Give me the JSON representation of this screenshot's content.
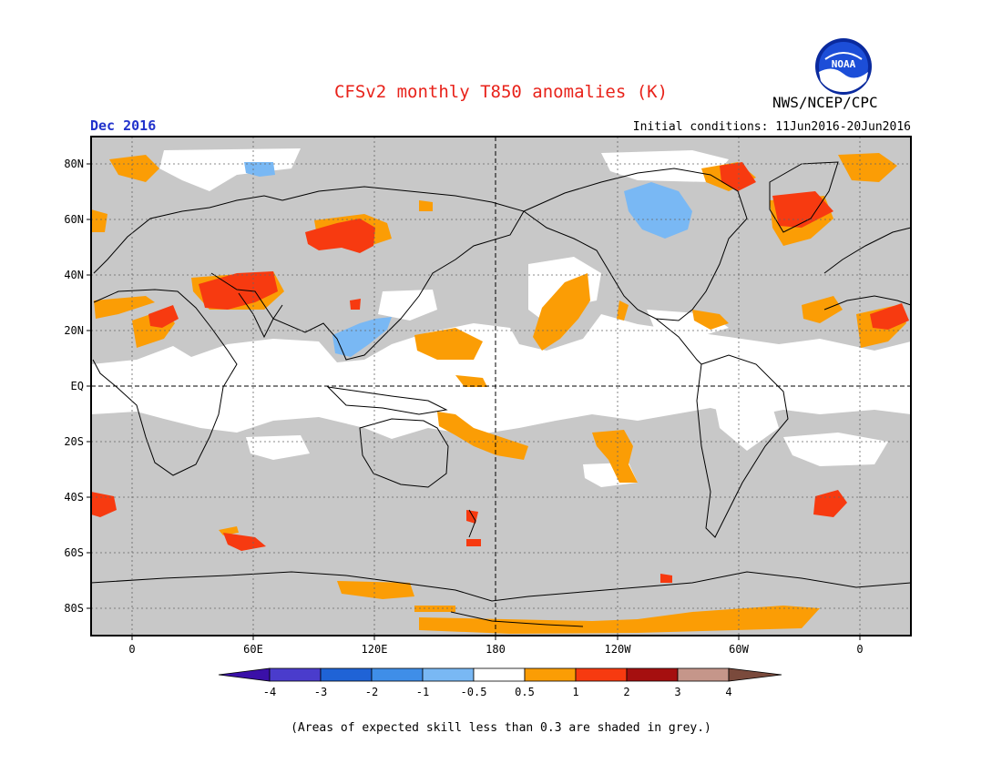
{
  "title": "CFSv2 monthly T850 anomalies (K)",
  "agency": "NWS/NCEP/CPC",
  "logo_text": "NOAA",
  "valid_month": "Dec 2016",
  "initial_conditions": "Initial conditions: 11Jun2016-20Jun2016",
  "footnote": "(Areas of expected skill less than 0.3 are shaded in grey.)",
  "lat_labels": [
    "80N",
    "60N",
    "40N",
    "20N",
    "EQ",
    "20S",
    "40S",
    "60S",
    "80S"
  ],
  "lon_labels": [
    "0",
    "60E",
    "120E",
    "180",
    "120W",
    "60W",
    "0"
  ],
  "colorbar": {
    "tick_labels": [
      "-4",
      "-3",
      "-2",
      "-1",
      "-0.5",
      "0.5",
      "1",
      "2",
      "3",
      "4"
    ],
    "colors": [
      "#3a10a8",
      "#4a3ccc",
      "#1f63d6",
      "#3f8ee8",
      "#79b8f4",
      "#ffffff",
      "#fb9d05",
      "#f73a10",
      "#a50f0f",
      "#c5968a",
      "#7a4a3c"
    ]
  },
  "colors": {
    "grey_skill_mask": "#c8c8c8",
    "positive_0_5_to_1": "#fb9d05",
    "positive_1_to_2": "#f73a10",
    "negative_0_5_to_1": "#79b8f4",
    "title": "#e8221a",
    "month_label": "#2233cc"
  }
}
